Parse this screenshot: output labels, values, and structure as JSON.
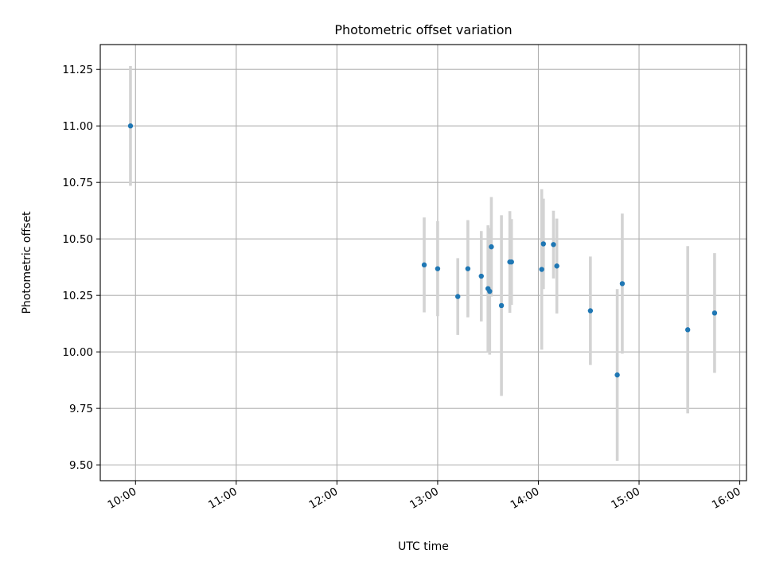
{
  "chart_data": {
    "type": "scatter",
    "title": "Photometric offset variation",
    "xlabel": "UTC time",
    "ylabel": "Photometric offset",
    "xlim": [
      "09:39",
      "16:04"
    ],
    "ylim": [
      9.43,
      11.36
    ],
    "x_ticks": [
      "10:00",
      "11:00",
      "12:00",
      "13:00",
      "14:00",
      "15:00",
      "16:00"
    ],
    "y_ticks": [
      "9.50",
      "9.75",
      "10.00",
      "10.25",
      "10.50",
      "10.75",
      "11.00",
      "11.25"
    ],
    "grid": true,
    "marker_color": "#1f77b4",
    "errorbar_color": "#d3d3d3",
    "series": [
      {
        "points": [
          {
            "x": "09:57",
            "y": 11.0,
            "err": 0.265
          },
          {
            "x": "12:52",
            "y": 10.385,
            "err": 0.21
          },
          {
            "x": "13:00",
            "y": 10.368,
            "err": 0.21
          },
          {
            "x": "13:12",
            "y": 10.245,
            "err": 0.17
          },
          {
            "x": "13:18",
            "y": 10.368,
            "err": 0.215
          },
          {
            "x": "13:26",
            "y": 10.335,
            "err": 0.2
          },
          {
            "x": "13:30",
            "y": 10.28,
            "err": 0.28
          },
          {
            "x": "13:31",
            "y": 10.268,
            "err": 0.28
          },
          {
            "x": "13:32",
            "y": 10.465,
            "err": 0.22
          },
          {
            "x": "13:38",
            "y": 10.205,
            "err": 0.4
          },
          {
            "x": "13:43",
            "y": 10.398,
            "err": 0.225
          },
          {
            "x": "13:44",
            "y": 10.398,
            "err": 0.19
          },
          {
            "x": "14:02",
            "y": 10.365,
            "err": 0.355
          },
          {
            "x": "14:03",
            "y": 10.478,
            "err": 0.2
          },
          {
            "x": "14:09",
            "y": 10.475,
            "err": 0.15
          },
          {
            "x": "14:11",
            "y": 10.38,
            "err": 0.21
          },
          {
            "x": "14:31",
            "y": 10.182,
            "err": 0.24
          },
          {
            "x": "14:47",
            "y": 9.898,
            "err": 0.38
          },
          {
            "x": "14:50",
            "y": 10.302,
            "err": 0.31
          },
          {
            "x": "15:29",
            "y": 10.098,
            "err": 0.37
          },
          {
            "x": "15:45",
            "y": 10.172,
            "err": 0.265
          }
        ]
      }
    ]
  }
}
